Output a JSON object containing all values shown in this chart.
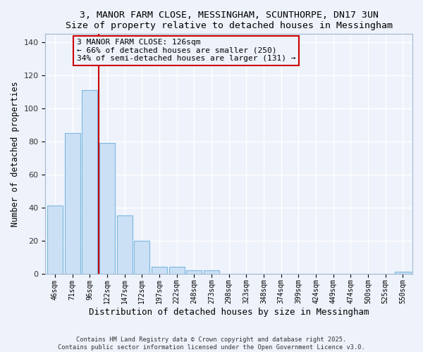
{
  "title": "3, MANOR FARM CLOSE, MESSINGHAM, SCUNTHORPE, DN17 3UN",
  "subtitle": "Size of property relative to detached houses in Messingham",
  "xlabel": "Distribution of detached houses by size in Messingham",
  "ylabel": "Number of detached properties",
  "bin_labels": [
    "46sqm",
    "71sqm",
    "96sqm",
    "122sqm",
    "147sqm",
    "172sqm",
    "197sqm",
    "222sqm",
    "248sqm",
    "273sqm",
    "298sqm",
    "323sqm",
    "348sqm",
    "374sqm",
    "399sqm",
    "424sqm",
    "449sqm",
    "474sqm",
    "500sqm",
    "525sqm",
    "550sqm"
  ],
  "bar_values": [
    41,
    85,
    111,
    79,
    35,
    20,
    4,
    4,
    2,
    2,
    0,
    0,
    0,
    0,
    0,
    0,
    0,
    0,
    0,
    0,
    1
  ],
  "bar_color": "#cce0f5",
  "bar_edge_color": "#7ab8e0",
  "vline_x_index": 3,
  "vline_color": "#cc0000",
  "annotation_title": "3 MANOR FARM CLOSE: 126sqm",
  "annotation_line2": "← 66% of detached houses are smaller (250)",
  "annotation_line3": "34% of semi-detached houses are larger (131) →",
  "annotation_box_color": "#cc0000",
  "ylim": [
    0,
    145
  ],
  "yticks": [
    0,
    20,
    40,
    60,
    80,
    100,
    120,
    140
  ],
  "footer1": "Contains HM Land Registry data © Crown copyright and database right 2025.",
  "footer2": "Contains public sector information licensed under the Open Government Licence v3.0.",
  "bg_color": "#eef2fb",
  "grid_color": "#ffffff"
}
